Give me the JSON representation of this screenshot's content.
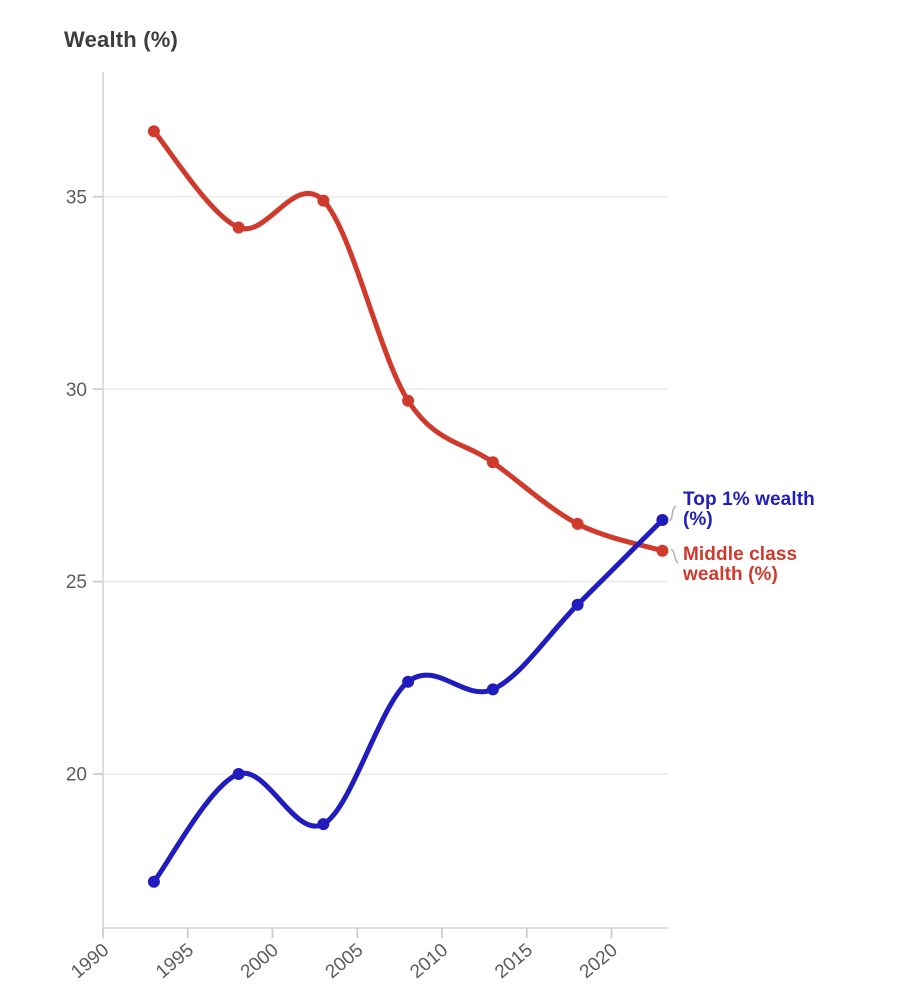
{
  "chart": {
    "title": "Wealth (%)",
    "colors": {
      "top1_blue": "#201cbe",
      "middle_red": "#d03a2c",
      "grid": "#ececec",
      "axis_line": "#d9d9d9",
      "tick_mark": "#cccccc",
      "tick_label": "#5d5d5d",
      "title_text": "#3d3d3d",
      "connector": "#b5b5b5",
      "background": "#ffffff"
    }
  },
  "chart_data": {
    "type": "line",
    "title": "Wealth (%)",
    "xlabel": "",
    "ylabel": "Wealth (%)",
    "x": [
      1993,
      1998,
      2003,
      2008,
      2013,
      2018,
      2023
    ],
    "series": [
      {
        "name": "Top 1% wealth (%)",
        "color": "#201cbe",
        "values": [
          17.2,
          20.0,
          18.7,
          22.4,
          22.2,
          24.4,
          26.6
        ]
      },
      {
        "name": "Middle class wealth (%)",
        "color": "#d03a2c",
        "values": [
          36.7,
          34.2,
          34.9,
          29.7,
          28.1,
          26.5,
          25.8
        ]
      }
    ],
    "x_ticks": [
      1990,
      1995,
      2000,
      2005,
      2010,
      2015,
      2020
    ],
    "y_ticks": [
      20,
      25,
      30,
      35
    ],
    "xlim": [
      1990,
      2023.33
    ],
    "ylim": [
      16.0,
      38.24
    ],
    "grid": "horizontal-only",
    "line_style": "smooth",
    "markers": "filled-circles",
    "legend_position": "direct-labels-right",
    "x_tick_rotation_deg": -40
  }
}
